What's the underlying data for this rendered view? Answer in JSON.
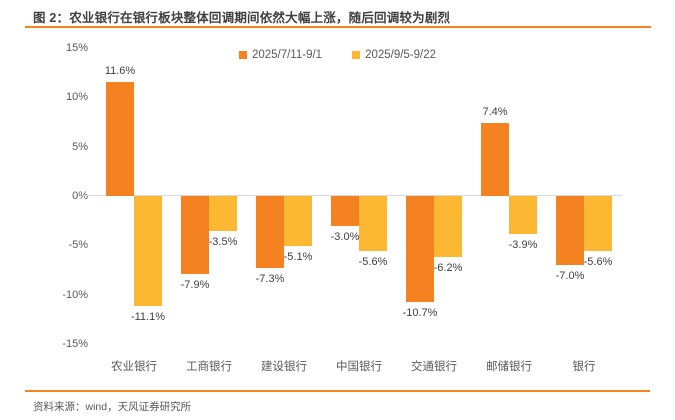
{
  "header": {
    "title": "图 2：农业银行在银行板块整体回调期间依然大幅上涨，随后回调较为剧烈"
  },
  "footer": {
    "source": "资料来源：wind，天风证券研究所"
  },
  "colors": {
    "accent_orange": "#F58220",
    "series_yellow": "#FCB832",
    "title_text": "#3F3F3F",
    "axis_text": "#595959",
    "value_label_text": "#404040",
    "zero_line": "#D9D9D9"
  },
  "chart_data": {
    "type": "bar",
    "categories": [
      "农业银行",
      "工商银行",
      "建设银行",
      "中国银行",
      "交通银行",
      "邮储银行",
      "银行"
    ],
    "series": [
      {
        "name": "2025/7/11-9/1",
        "color": "#F58220",
        "values": [
          11.6,
          -7.9,
          -7.3,
          -3.0,
          -10.7,
          7.4,
          -7.0
        ]
      },
      {
        "name": "2025/9/5-9/22",
        "color": "#FCB832",
        "values": [
          -11.1,
          -3.5,
          -5.1,
          -5.6,
          -6.2,
          -3.9,
          -5.6
        ]
      }
    ],
    "data_labels": [
      [
        "11.6%",
        "-7.9%",
        "-7.3%",
        "-3.0%",
        "-10.7%",
        "7.4%",
        "-7.0%"
      ],
      [
        "-11.1%",
        "-3.5%",
        "-5.1%",
        "-5.6%",
        "-6.2%",
        "-3.9%",
        "-5.6%"
      ]
    ],
    "ylim": [
      -15,
      15
    ],
    "ytick_values": [
      15,
      10,
      5,
      0,
      -5,
      -10,
      -15
    ],
    "ytick_labels": [
      "15%",
      "10%",
      "5%",
      "0%",
      "-5%",
      "-10%",
      "-15%"
    ],
    "xlabel": "",
    "ylabel": "",
    "grid": false,
    "legend_position": "top-center"
  }
}
